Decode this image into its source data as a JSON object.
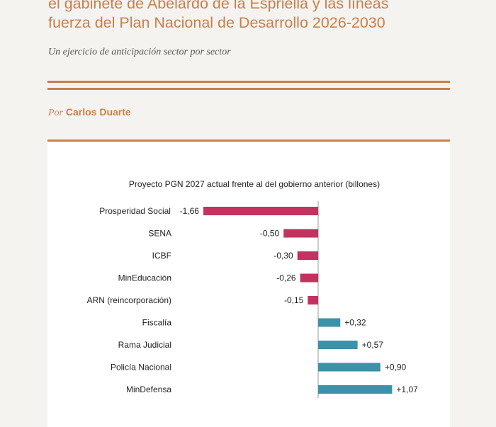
{
  "article": {
    "title_lines": [
      "el gabinete de Abelardo de la Espriella y las líneas",
      "fuerza del Plan Nacional de Desarrollo 2026-2030"
    ],
    "subtitle": "Un ejercicio de anticipación sector por sector",
    "byline_prefix": "Por",
    "author": "Carlos Duarte"
  },
  "colors": {
    "accent": "#c97f4a",
    "negative": "#c2335f",
    "positive": "#3a93a8"
  },
  "chart_data": {
    "type": "bar",
    "orientation": "horizontal",
    "title": "Proyecto PGN 2027 actual frente al del gobierno anterior (billones)",
    "categories": [
      "Prosperidad Social",
      "SENA",
      "ICBF",
      "MinEducación",
      "ARN (reincorporación)",
      "Fiscalía",
      "Rama Judicial",
      "Policía Nacional",
      "MinDefensa"
    ],
    "values": [
      -1.66,
      -0.5,
      -0.3,
      -0.26,
      -0.15,
      0.32,
      0.57,
      0.9,
      1.07
    ],
    "value_labels": [
      "-1,66",
      "-0,50",
      "-0,30",
      "-0,26",
      "-0,15",
      "+0,32",
      "+0,57",
      "+0,90",
      "+1,07"
    ],
    "xlim": [
      -1.66,
      1.07
    ],
    "grid": false,
    "legend": "none"
  }
}
